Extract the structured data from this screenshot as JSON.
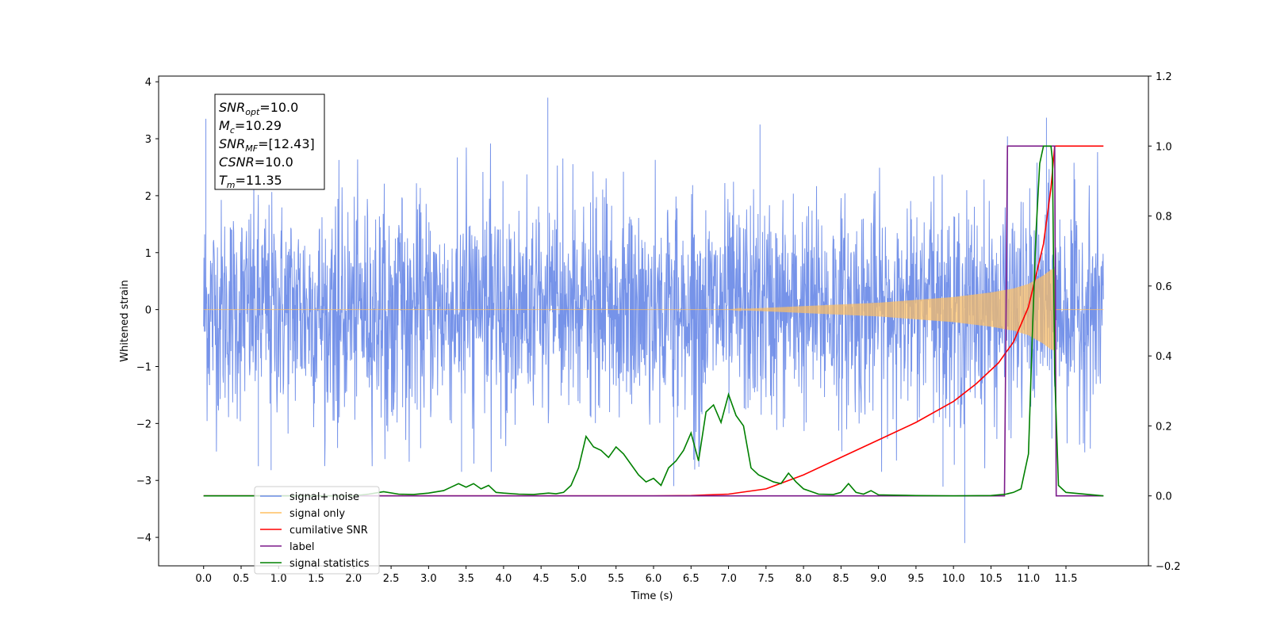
{
  "chart_data": {
    "type": "line",
    "xlabel": "Time (s)",
    "ylabel": "Whitened strain",
    "xlim": [
      -0.6,
      12.6
    ],
    "ylim": [
      -4.5,
      4.1
    ],
    "ylim_right": [
      -0.2,
      1.2
    ],
    "x_ticks": [
      "0.0",
      "0.5",
      "1.0",
      "1.5",
      "2.0",
      "2.5",
      "3.0",
      "3.5",
      "4.0",
      "4.5",
      "5.0",
      "5.5",
      "6.0",
      "6.5",
      "7.0",
      "7.5",
      "8.0",
      "8.5",
      "9.0",
      "9.5",
      "10.0",
      "10.5",
      "11.0",
      "11.5"
    ],
    "y_ticks_left": [
      "4",
      "3",
      "2",
      "1",
      "0",
      "−1",
      "−2",
      "−3",
      "−4"
    ],
    "y_ticks_right": [
      "1.2",
      "1.0",
      "0.8",
      "0.6",
      "0.4",
      "0.2",
      "0.0",
      "−0.2"
    ],
    "info_box": [
      {
        "main": "SNR",
        "sub": "opt",
        "value": "=10.0"
      },
      {
        "main": "M",
        "sub": "c",
        "value": "=10.29"
      },
      {
        "main": "SNR",
        "sub": "MF",
        "value": "=[12.43]"
      },
      {
        "main": "CSNR",
        "sub": "",
        "value": "=10.0"
      },
      {
        "main": "T",
        "sub": "m",
        "value": "=11.35"
      }
    ],
    "legend": {
      "position": "lower-left",
      "entries": [
        {
          "label": "signal+ noise",
          "color": "#6f8de8"
        },
        {
          "label": "signal only",
          "color": "#ffbf60"
        },
        {
          "label": "cumilative SNR",
          "color": "#ff0000"
        },
        {
          "label": "label",
          "color": "#7b1a8a"
        },
        {
          "label": "signal statistics",
          "color": "#008000"
        }
      ]
    },
    "series": [
      {
        "name": "signal+ noise",
        "axis": "left",
        "color": "#6f8de8",
        "kind": "noise",
        "x_range": [
          0.0,
          12.0
        ],
        "std": 0.95,
        "spikes": [
          [
            0.03,
            3.35
          ],
          [
            4.59,
            3.72
          ],
          [
            11.24,
            3.37
          ],
          [
            7.42,
            3.25
          ],
          [
            10.72,
            3.04
          ],
          [
            10.15,
            -4.1
          ],
          [
            9.86,
            -3.11
          ],
          [
            6.27,
            -3.1
          ],
          [
            3.44,
            -2.85
          ],
          [
            0.9,
            -2.82
          ],
          [
            0.73,
            -2.75
          ]
        ]
      },
      {
        "name": "signal only",
        "axis": "left",
        "color": "#ffbf60",
        "kind": "chirp",
        "x_range": [
          0.0,
          12.0
        ],
        "t_merge": 11.35,
        "envelope": [
          [
            7.0,
            0.0
          ],
          [
            8.0,
            0.06
          ],
          [
            9.0,
            0.12
          ],
          [
            10.0,
            0.22
          ],
          [
            10.5,
            0.3
          ],
          [
            10.8,
            0.37
          ],
          [
            11.0,
            0.45
          ],
          [
            11.2,
            0.6
          ],
          [
            11.3,
            0.7
          ],
          [
            11.35,
            0.72
          ],
          [
            11.36,
            0.0
          ],
          [
            12.0,
            0.0
          ]
        ]
      },
      {
        "name": "cumilative SNR",
        "axis": "right",
        "color": "#ff0000",
        "x": [
          0.0,
          6.0,
          6.5,
          7.0,
          7.5,
          8.0,
          8.5,
          9.0,
          9.5,
          10.0,
          10.3,
          10.6,
          10.8,
          11.0,
          11.2,
          11.3,
          11.35,
          11.36,
          12.0
        ],
        "y": [
          0.0,
          0.0,
          0.001,
          0.005,
          0.02,
          0.06,
          0.11,
          0.16,
          0.21,
          0.27,
          0.32,
          0.38,
          0.44,
          0.54,
          0.72,
          0.88,
          1.0,
          1.0,
          1.0
        ]
      },
      {
        "name": "label",
        "axis": "right",
        "color": "#7b1a8a",
        "x": [
          0.0,
          10.68,
          10.72,
          11.35,
          11.37,
          12.0
        ],
        "y": [
          0.0,
          0.0,
          1.0,
          1.0,
          0.0,
          0.0
        ]
      },
      {
        "name": "signal statistics",
        "axis": "right",
        "color": "#008000",
        "x": [
          0.0,
          2.0,
          2.2,
          2.4,
          2.6,
          2.8,
          3.0,
          3.2,
          3.3,
          3.4,
          3.5,
          3.6,
          3.7,
          3.8,
          3.9,
          4.0,
          4.2,
          4.4,
          4.6,
          4.7,
          4.8,
          4.9,
          5.0,
          5.1,
          5.2,
          5.3,
          5.4,
          5.5,
          5.6,
          5.7,
          5.8,
          5.9,
          6.0,
          6.1,
          6.2,
          6.3,
          6.4,
          6.5,
          6.6,
          6.7,
          6.8,
          6.9,
          7.0,
          7.1,
          7.2,
          7.3,
          7.4,
          7.5,
          7.6,
          7.7,
          7.8,
          7.9,
          8.0,
          8.2,
          8.4,
          8.5,
          8.6,
          8.7,
          8.8,
          8.9,
          9.0,
          9.2,
          9.5,
          10.0,
          10.5,
          10.7,
          10.8,
          10.9,
          11.0,
          11.05,
          11.1,
          11.15,
          11.2,
          11.25,
          11.3,
          11.32,
          11.35,
          11.4,
          11.5,
          12.0
        ],
        "y": [
          0.0,
          0.0,
          0.005,
          0.012,
          0.005,
          0.004,
          0.008,
          0.015,
          0.025,
          0.035,
          0.025,
          0.035,
          0.02,
          0.03,
          0.01,
          0.008,
          0.005,
          0.004,
          0.008,
          0.006,
          0.01,
          0.03,
          0.08,
          0.17,
          0.14,
          0.13,
          0.11,
          0.14,
          0.12,
          0.09,
          0.06,
          0.04,
          0.05,
          0.03,
          0.08,
          0.1,
          0.13,
          0.18,
          0.1,
          0.24,
          0.26,
          0.21,
          0.29,
          0.23,
          0.2,
          0.08,
          0.06,
          0.05,
          0.04,
          0.035,
          0.065,
          0.04,
          0.02,
          0.005,
          0.004,
          0.01,
          0.035,
          0.01,
          0.005,
          0.015,
          0.003,
          0.002,
          0.001,
          0.0,
          0.001,
          0.005,
          0.01,
          0.02,
          0.12,
          0.45,
          0.75,
          0.95,
          1.0,
          1.0,
          1.0,
          0.96,
          0.35,
          0.03,
          0.01,
          0.0
        ]
      }
    ]
  }
}
